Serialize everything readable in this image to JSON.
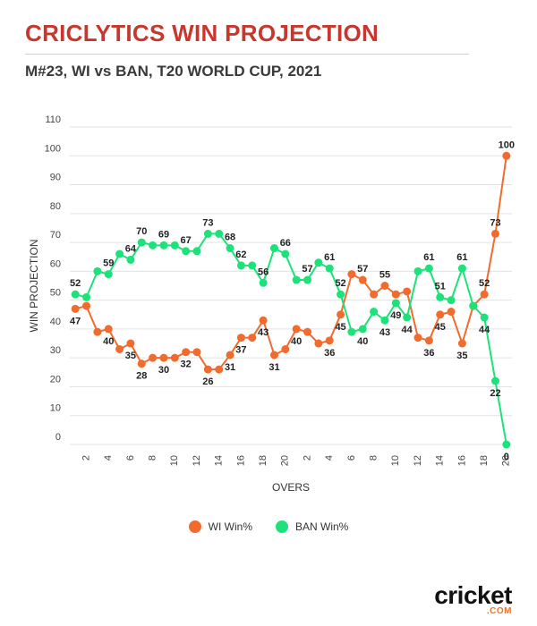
{
  "title": "CRICLYTICS WIN PROJECTION",
  "subtitle": "M#23, WI vs BAN, T20 WORLD CUP, 2021",
  "colors": {
    "wi": "#f26b2e",
    "ban": "#1de27a",
    "title": "#c8372d",
    "grid": "#e3e3e3"
  },
  "legend": {
    "wi_label": "WI Win%",
    "ban_label": "BAN Win%"
  },
  "logo": {
    "text": "cricket",
    "sub": ".COM"
  },
  "chart_data": {
    "type": "line",
    "xlabel": "OVERS",
    "ylabel": "WIN PROJECTION",
    "ylim": [
      0,
      110
    ],
    "yticks": [
      0,
      10,
      20,
      30,
      40,
      50,
      60,
      70,
      80,
      90,
      100,
      110
    ],
    "grid": true,
    "legend_position": "bottom",
    "categories": [
      "1",
      "2",
      "3",
      "4",
      "5",
      "6",
      "7",
      "8",
      "9",
      "10",
      "11",
      "12",
      "13",
      "14",
      "15",
      "16",
      "17",
      "18",
      "19",
      "20",
      "1",
      "2",
      "3",
      "4",
      "5",
      "6",
      "7",
      "8",
      "9",
      "10",
      "11",
      "12",
      "13",
      "14",
      "15",
      "16",
      "17",
      "18",
      "19",
      "20"
    ],
    "xtick_labels": [
      "",
      "2",
      "",
      "4",
      "",
      "6",
      "",
      "8",
      "",
      "10",
      "",
      "12",
      "",
      "14",
      "",
      "16",
      "",
      "18",
      "",
      "20",
      "",
      "2",
      "",
      "4",
      "",
      "6",
      "",
      "8",
      "",
      "10",
      "",
      "12",
      "",
      "14",
      "",
      "16",
      "",
      "18",
      "",
      "20"
    ],
    "series": [
      {
        "name": "WI Win%",
        "values": [
          47,
          48,
          39,
          40,
          33,
          35,
          28,
          30,
          30,
          30,
          32,
          32,
          26,
          26,
          31,
          37,
          37,
          43,
          31,
          33,
          40,
          39,
          35,
          36,
          45,
          59,
          57,
          52,
          55,
          52,
          53,
          37,
          36,
          45,
          46,
          35,
          48,
          52,
          73,
          100
        ],
        "labels": [
          "47",
          "",
          "",
          "40",
          "",
          "35",
          "28",
          "",
          "30",
          "",
          "32",
          "",
          "26",
          "",
          "31",
          "37",
          "",
          "43",
          "31",
          "",
          "40",
          "",
          "",
          "36",
          "45",
          "",
          "57",
          "",
          "55",
          "",
          "",
          "",
          "36",
          "45",
          "",
          "35",
          "",
          "52",
          "73",
          "100"
        ]
      },
      {
        "name": "BAN Win%",
        "values": [
          52,
          51,
          60,
          59,
          66,
          64,
          70,
          69,
          69,
          69,
          67,
          67,
          73,
          73,
          68,
          62,
          62,
          56,
          68,
          66,
          57,
          57,
          63,
          61,
          52,
          39,
          40,
          46,
          43,
          49,
          44,
          60,
          61,
          51,
          50,
          61,
          48,
          44,
          22,
          0
        ],
        "labels": [
          "52",
          "",
          "",
          "59",
          "",
          "64",
          "70",
          "",
          "69",
          "",
          "67",
          "",
          "73",
          "",
          "68",
          "62",
          "",
          "56",
          "",
          "66",
          "",
          "57",
          "",
          "61",
          "52",
          "",
          "40",
          "",
          "43",
          "49",
          "44",
          "",
          "61",
          "51",
          "",
          "61",
          "",
          "44",
          "22",
          "0"
        ]
      }
    ]
  }
}
